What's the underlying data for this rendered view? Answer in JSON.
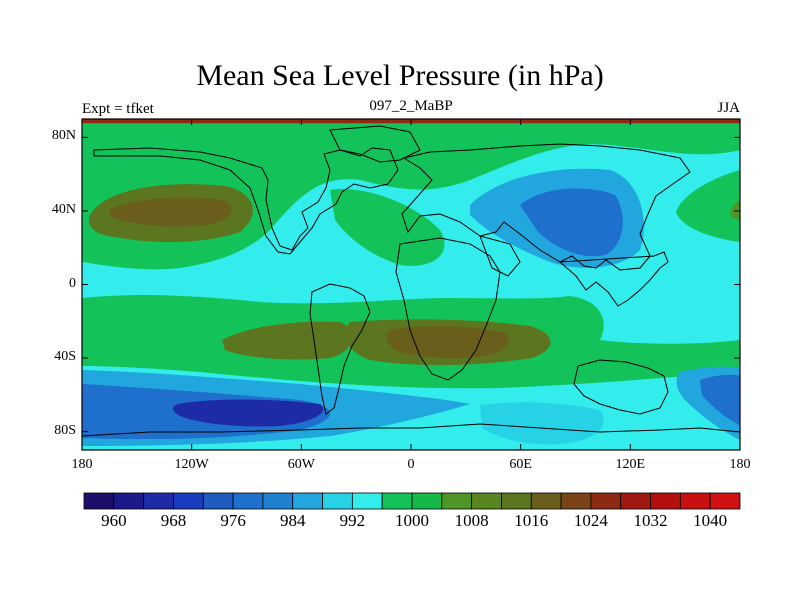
{
  "header": {
    "title": "Mean Sea Level Pressure (in hPa)",
    "left_label": "Expt = tfket",
    "center_label": "097_2_MaBP",
    "right_label": "JJA"
  },
  "map": {
    "projection": "cylindrical-equidistant",
    "lon_range": [
      -180,
      180
    ],
    "lat_range": [
      -90,
      90
    ],
    "x_ticks": [
      {
        "value": -180,
        "label": "180"
      },
      {
        "value": -120,
        "label": "120W"
      },
      {
        "value": -60,
        "label": "60W"
      },
      {
        "value": 0,
        "label": "0"
      },
      {
        "value": 60,
        "label": "60E"
      },
      {
        "value": 120,
        "label": "120E"
      },
      {
        "value": 180,
        "label": "180"
      }
    ],
    "y_ticks": [
      {
        "value": 80,
        "label": "80N"
      },
      {
        "value": 40,
        "label": "40N"
      },
      {
        "value": 0,
        "label": "0"
      },
      {
        "value": -40,
        "label": "40S"
      },
      {
        "value": -80,
        "label": "80S"
      }
    ]
  },
  "colorbar": {
    "colors": [
      "#1e0e6a",
      "#1a1a8a",
      "#1e2ba6",
      "#1a3cbf",
      "#1e5cc0",
      "#1e70cc",
      "#2080d0",
      "#21a6dd",
      "#28d2e6",
      "#33ecec",
      "#14c25a",
      "#16b84a",
      "#4e9626",
      "#5a8622",
      "#5c7620",
      "#6a5e1c",
      "#7a4418",
      "#8e2a14",
      "#a01810",
      "#b40e0e",
      "#c81010",
      "#d21212"
    ],
    "label_levels": [
      "960",
      "968",
      "976",
      "984",
      "992",
      "1000",
      "1008",
      "1016",
      "1024",
      "1032",
      "1040"
    ]
  }
}
